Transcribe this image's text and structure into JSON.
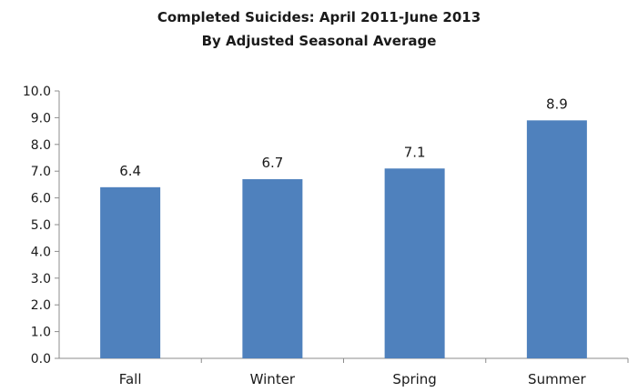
{
  "chart_data": {
    "type": "bar",
    "title": "Completed Suicides: April 2011-June 2013",
    "subtitle": "By Adjusted Seasonal Average",
    "xlabel": "",
    "ylabel": "",
    "categories": [
      "Fall",
      "Winter",
      "Spring",
      "Summer"
    ],
    "values": [
      6.4,
      6.7,
      7.1,
      8.9
    ],
    "data_labels": [
      "6.4",
      "6.7",
      "7.1",
      "8.9"
    ],
    "ylim": [
      0,
      10
    ],
    "yticks": [
      "0.0",
      "1.0",
      "2.0",
      "3.0",
      "4.0",
      "5.0",
      "6.0",
      "7.0",
      "8.0",
      "9.0",
      "10.0"
    ],
    "grid": false,
    "legend": "none",
    "bar_color": "#4f81bd"
  }
}
